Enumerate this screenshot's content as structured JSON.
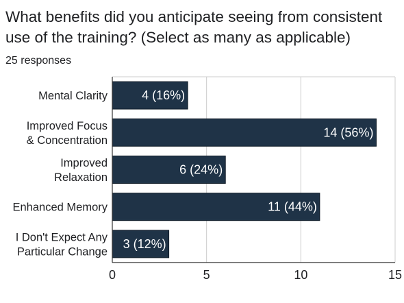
{
  "form": {
    "question": "What benefits did you anticipate seeing from consistent use of the training? (Select as many as applicable)",
    "responses": "25 responses"
  },
  "colors": {
    "bar": "#1f3347",
    "grid": "#cccccc",
    "axis": "#333333"
  },
  "chart_data": {
    "type": "bar",
    "orientation": "horizontal",
    "title": "What benefits did you anticipate seeing from consistent use of the training? (Select as many as applicable)",
    "categories": [
      [
        "Mental Clarity"
      ],
      [
        "Improved Focus",
        "& Concentration"
      ],
      [
        "Improved",
        "Relaxation"
      ],
      [
        "Enhanced Memory"
      ],
      [
        "I Don't Expect Any",
        "Particular Change"
      ]
    ],
    "values": [
      4,
      14,
      6,
      11,
      3
    ],
    "data_labels": [
      "4 (16%)",
      "14 (56%)",
      "6 (24%)",
      "11 (44%)",
      "3 (12%)"
    ],
    "xlim": [
      0,
      15
    ],
    "xticks": [
      0,
      5,
      10,
      15
    ],
    "grid": true,
    "xlabel": "",
    "ylabel": ""
  }
}
